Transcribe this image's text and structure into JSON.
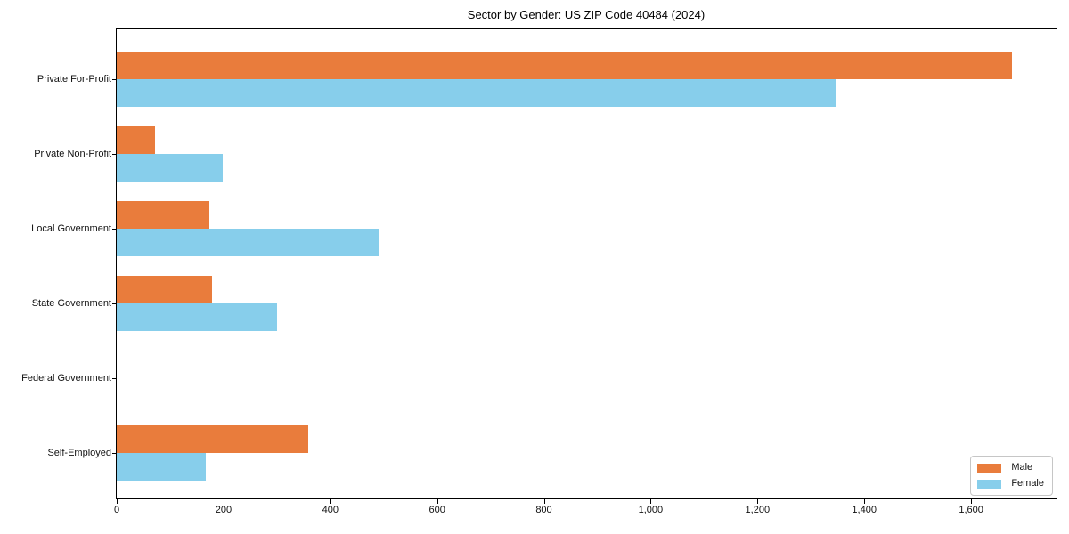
{
  "chart_data": {
    "type": "bar",
    "orientation": "horizontal",
    "title": "Sector by Gender: US ZIP Code 40484 (2024)",
    "categories": [
      "Private For-Profit",
      "Private Non-Profit",
      "Local Government",
      "State Government",
      "Federal Government",
      "Self-Employed"
    ],
    "series": [
      {
        "name": "Male",
        "color": "#E97C3C",
        "values": [
          1676,
          71,
          174,
          178,
          0,
          358
        ]
      },
      {
        "name": "Female",
        "color": "#87CEEB",
        "values": [
          1348,
          198,
          490,
          300,
          0,
          166
        ]
      }
    ],
    "xlim": [
      0,
      1760
    ],
    "xticks": [
      0,
      200,
      400,
      600,
      800,
      1000,
      1200,
      1400,
      1600
    ],
    "xtick_labels": [
      "0",
      "200",
      "400",
      "600",
      "800",
      "1,000",
      "1,200",
      "1,400",
      "1,600"
    ],
    "ylabel": "",
    "xlabel": "",
    "grid": false,
    "legend_position": "lower right",
    "bar_order_per_category": [
      "Male top",
      "Female bottom"
    ]
  }
}
